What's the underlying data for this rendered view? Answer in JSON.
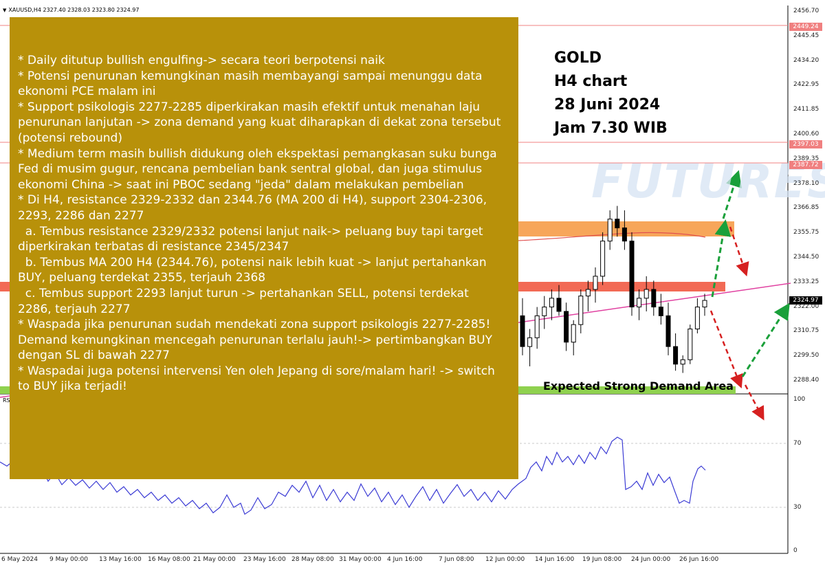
{
  "chart_header": {
    "symbol": "XAUUSD,H4",
    "ohlc": "2327.40 2328.03 2323.80 2324.97"
  },
  "price_axis": {
    "labels": [
      "2456.70",
      "2445.45",
      "2434.20",
      "2422.95",
      "2411.85",
      "2400.60",
      "2389.35",
      "2378.10",
      "2366.85",
      "2355.75",
      "2344.50",
      "2333.25",
      "2322.00",
      "2310.75",
      "2299.50",
      "2288.40"
    ],
    "tags": [
      {
        "text": "2449.24",
        "style": "red"
      },
      {
        "text": "2397.03",
        "style": "red"
      },
      {
        "text": "2387.72",
        "style": "red"
      },
      {
        "text": "2324.97",
        "style": "dark"
      }
    ]
  },
  "time_axis": {
    "labels": [
      "6 May 2024",
      "9 May 00:00",
      "13 May 16:00",
      "16 May 08:00",
      "21 May 00:00",
      "23 May 16:00",
      "28 May 08:00",
      "31 May 00:00",
      "4 Jun 16:00",
      "7 Jun 08:00",
      "12 Jun 00:00",
      "14 Jun 16:00",
      "19 Jun 08:00",
      "24 Jun 00:00",
      "26 Jun 16:00"
    ]
  },
  "rsi_panel": {
    "tag": "RS",
    "labels": [
      "100",
      "70",
      "30",
      "0"
    ]
  },
  "title_block": {
    "lines": [
      "GOLD",
      "H4 chart",
      "28 Juni 2024",
      "Jam 7.30 WIB"
    ]
  },
  "watermark": "FUTURES",
  "zones": {
    "demand_label": "Expected Strong Demand Area"
  },
  "analysis_lines": [
    "* Daily ditutup bullish engulfing-> secara teori berpotensi naik",
    "* Potensi penurunan kemungkinan masih membayangi sampai menunggu data",
    "ekonomi PCE malam ini",
    "* Support psikologis 2277-2285 diperkirakan masih efektif untuk menahan laju",
    "penurunan lanjutan -> zona demand yang kuat diharapkan di dekat zona tersebut",
    "(potensi rebound)",
    "* Medium term masih bullish didukung oleh ekspektasi pemangkasan suku bunga",
    "Fed di musim gugur, rencana pembelian bank sentral global, dan juga stimulus",
    "ekonomi China -> saat ini PBOC sedang \"jeda\" dalam melakukan pembelian",
    "* Di H4, resistance 2329-2332 dan 2344.76 (MA 200 di H4), support 2304-2306,",
    "2293, 2286 dan 2277",
    "  a. Tembus resistance 2329/2332 potensi lanjut naik-> peluang buy tapi target",
    "diperkirakan terbatas di resistance 2345/2347",
    "  b. Tembus MA 200 H4 (2344.76), potensi naik lebih kuat -> lanjut pertahankan",
    "BUY, peluang terdekat 2355, terjauh 2368",
    "  c. Tembus support 2293 lanjut turun -> pertahankan SELL, potensi terdekat",
    "2286, terjauh 2277",
    "* Waspada jika penurunan sudah mendekati zona support psikologis 2277-2285!",
    "Demand kemungkinan mencegah penurunan terlalu jauh!-> pertimbangkan BUY",
    "dengan SL di bawah 2277",
    "* Waspadai juga potensi intervensi Yen oleh Jepang di sore/malam hari! -> switch",
    "to BUY jika terjadi!"
  ],
  "chart_data": {
    "type": "candlestick",
    "title": "",
    "ylim": [
      2282,
      2460
    ],
    "visible_candles": [
      {
        "o": 2318,
        "h": 2326,
        "l": 2300,
        "c": 2304
      },
      {
        "o": 2304,
        "h": 2312,
        "l": 2295,
        "c": 2308
      },
      {
        "o": 2308,
        "h": 2322,
        "l": 2303,
        "c": 2318
      },
      {
        "o": 2318,
        "h": 2327,
        "l": 2312,
        "c": 2322
      },
      {
        "o": 2322,
        "h": 2330,
        "l": 2316,
        "c": 2326
      },
      {
        "o": 2326,
        "h": 2332,
        "l": 2318,
        "c": 2320
      },
      {
        "o": 2320,
        "h": 2324,
        "l": 2302,
        "c": 2306
      },
      {
        "o": 2306,
        "h": 2316,
        "l": 2300,
        "c": 2314
      },
      {
        "o": 2314,
        "h": 2330,
        "l": 2310,
        "c": 2327
      },
      {
        "o": 2327,
        "h": 2334,
        "l": 2320,
        "c": 2330
      },
      {
        "o": 2330,
        "h": 2340,
        "l": 2324,
        "c": 2336
      },
      {
        "o": 2336,
        "h": 2356,
        "l": 2332,
        "c": 2352
      },
      {
        "o": 2352,
        "h": 2366,
        "l": 2348,
        "c": 2362
      },
      {
        "o": 2362,
        "h": 2368,
        "l": 2354,
        "c": 2358
      },
      {
        "o": 2358,
        "h": 2366,
        "l": 2348,
        "c": 2352
      },
      {
        "o": 2352,
        "h": 2356,
        "l": 2318,
        "c": 2322
      },
      {
        "o": 2322,
        "h": 2330,
        "l": 2316,
        "c": 2326
      },
      {
        "o": 2326,
        "h": 2336,
        "l": 2320,
        "c": 2330
      },
      {
        "o": 2330,
        "h": 2334,
        "l": 2318,
        "c": 2322
      },
      {
        "o": 2322,
        "h": 2328,
        "l": 2314,
        "c": 2318
      },
      {
        "o": 2318,
        "h": 2324,
        "l": 2300,
        "c": 2304
      },
      {
        "o": 2304,
        "h": 2310,
        "l": 2293,
        "c": 2296
      },
      {
        "o": 2296,
        "h": 2300,
        "l": 2292,
        "c": 2298
      },
      {
        "o": 2298,
        "h": 2314,
        "l": 2296,
        "c": 2312
      },
      {
        "o": 2312,
        "h": 2326,
        "l": 2310,
        "c": 2322
      },
      {
        "o": 2322,
        "h": 2328,
        "l": 2318,
        "c": 2325
      }
    ],
    "ma200_value": 2344.76,
    "resistance_zone": [
      2329,
      2332
    ],
    "upper_zone": [
      2355,
      2360
    ],
    "demand_zone": [
      2286,
      2288
    ],
    "rsi_ylim": [
      0,
      100
    ],
    "rsi_levels": [
      70,
      30
    ],
    "colors": {
      "bull": "#000000",
      "bear": "#000000",
      "ma": "#e05050",
      "trendline": "#e040a0",
      "rsi": "#3b3bd4",
      "resistance": "#f26a55",
      "upper_zone": "#f7a65a",
      "demand": "#8fd14f",
      "buy_arrow": "#1aa03a",
      "sell_arrow": "#d62020"
    }
  }
}
